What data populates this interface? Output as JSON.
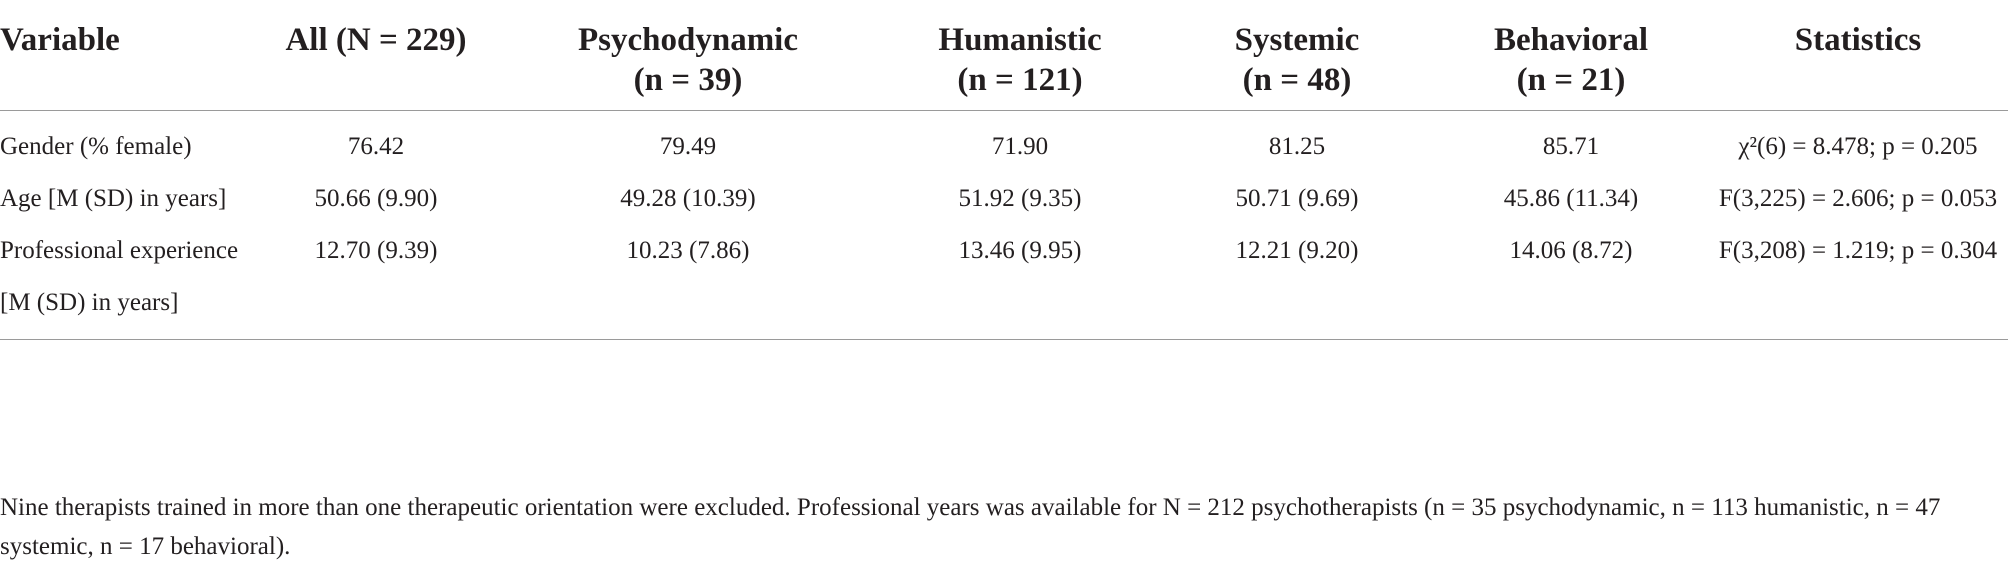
{
  "table": {
    "header": [
      [
        "Variable"
      ],
      [
        "All (N = 229)"
      ],
      [
        "Psychodynamic",
        "(n = 39)"
      ],
      [
        "Humanistic",
        "(n = 121)"
      ],
      [
        "Systemic",
        "(n = 48)"
      ],
      [
        "Behavioral",
        "(n = 21)"
      ],
      [
        "Statistics"
      ]
    ],
    "rows": [
      [
        "Gender (% female)",
        "76.42",
        "79.49",
        "71.90",
        "81.25",
        "85.71",
        "χ²(6) = 8.478; p = 0.205"
      ],
      [
        "Age [M (SD) in years]",
        "50.66 (9.90)",
        "49.28 (10.39)",
        "51.92 (9.35)",
        "50.71 (9.69)",
        "45.86 (11.34)",
        "F(3,225) = 2.606; p = 0.053"
      ],
      [
        "Professional experience [M (SD) in years]",
        "12.70 (9.39)",
        "10.23 (7.86)",
        "13.46 (9.95)",
        "12.21 (9.20)",
        "14.06 (8.72)",
        "F(3,208) = 1.219; p = 0.304"
      ]
    ]
  },
  "footnote": "Nine therapists trained in more than one therapeutic orientation were excluded. Professional years was available for N = 212 psychotherapists (n = 35 psychodynamic, n = 113 humanistic, n = 47 systemic, n = 17 behavioral)."
}
